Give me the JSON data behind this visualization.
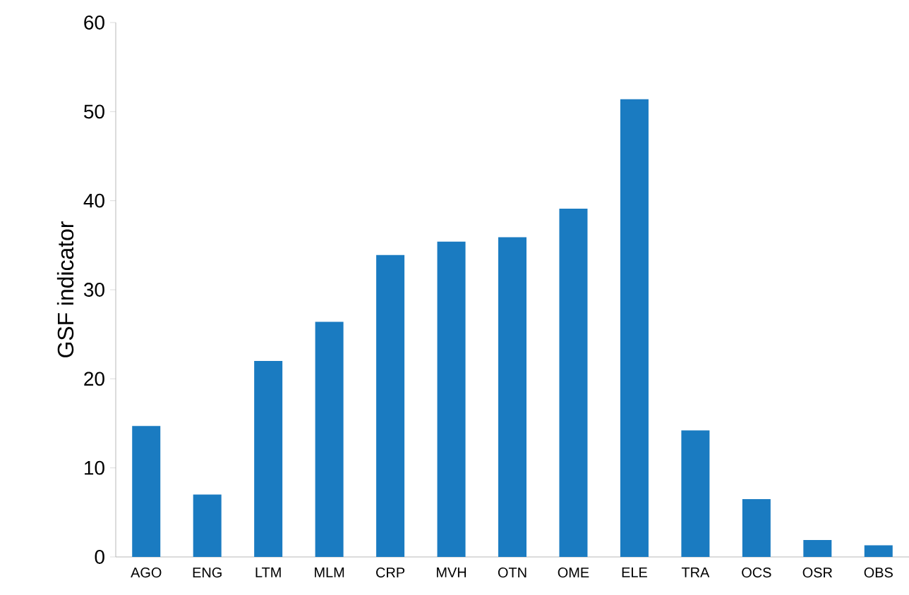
{
  "chart_data": {
    "type": "bar",
    "ylabel": "GSF indicator",
    "categories": [
      "AGO",
      "ENG",
      "LTM",
      "MLM",
      "CRP",
      "MVH",
      "OTN",
      "OME",
      "ELE",
      "TRA",
      "OCS",
      "OSR",
      "OBS"
    ],
    "values": [
      14.7,
      7.0,
      22.0,
      26.4,
      33.9,
      35.4,
      35.9,
      39.1,
      51.4,
      14.2,
      6.5,
      1.9,
      1.3
    ],
    "color": "#1a7bc1",
    "ylim": [
      0,
      60
    ],
    "yticks": [
      0,
      10,
      20,
      30,
      40,
      50,
      60
    ],
    "grid": false
  }
}
